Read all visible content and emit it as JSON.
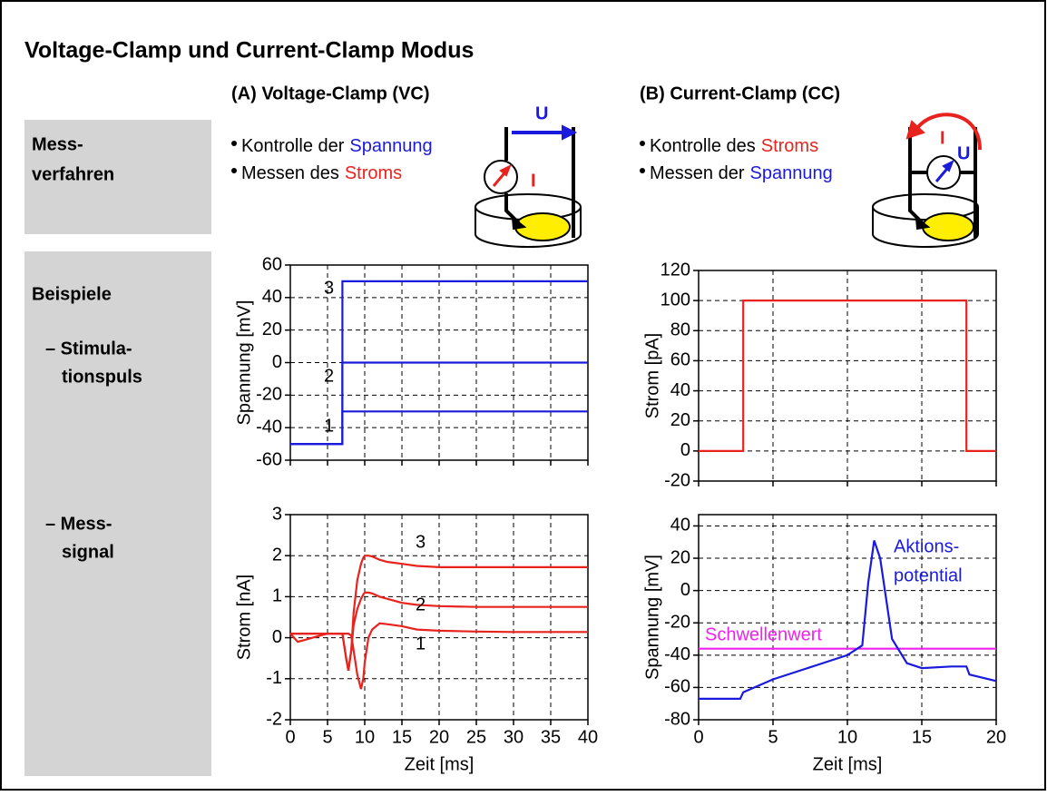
{
  "header": {
    "title": "Voltage-Clamp und Current-Clamp Modus"
  },
  "row_labels": {
    "method": [
      "Mess-",
      "verfahren"
    ],
    "examples": "Beispiele",
    "stimulus": [
      "– Stimula-",
      "tionspuls"
    ],
    "signal": [
      "– Mess-",
      "signal"
    ]
  },
  "panels": [
    {
      "heading": "(A) Voltage-Clamp (VC)",
      "bullets": [
        [
          "Kontrolle der",
          "Spannung"
        ],
        [
          "Messen des",
          "Stroms"
        ]
      ],
      "diagram": {
        "voltage": "U",
        "current": "I"
      }
    },
    {
      "heading": "(B) Current-Clamp (CC)",
      "bullets": [
        [
          "Kontrolle des",
          "Stroms"
        ],
        [
          "Messen der",
          "Spannung"
        ]
      ],
      "diagram": {
        "voltage": "U",
        "current": "I"
      }
    }
  ],
  "chart_data": [
    {
      "type": "line",
      "y_label": "Spannung [mV]",
      "xlim": [
        0,
        40
      ],
      "xticks": [
        0,
        5,
        10,
        15,
        20,
        25,
        30,
        35,
        40
      ],
      "show_xtick_labels": false,
      "ylim": [
        -60,
        60
      ],
      "yticks": [
        -60,
        -40,
        -20,
        0,
        20,
        40,
        60
      ],
      "grid": true,
      "series": [
        {
          "name": "1",
          "color": "#1a1adc",
          "x": [
            0,
            7,
            7,
            40
          ],
          "values": [
            -50,
            -50,
            -30,
            -30
          ]
        },
        {
          "name": "2",
          "color": "#1a1adc",
          "x": [
            0,
            7,
            7,
            40
          ],
          "values": [
            -50,
            -50,
            0,
            0
          ]
        },
        {
          "name": "3",
          "color": "#1a1adc",
          "x": [
            0,
            7,
            7,
            40
          ],
          "values": [
            -50,
            -50,
            50,
            50
          ]
        }
      ]
    },
    {
      "type": "line",
      "x_label": "Zeit [ms]",
      "y_label": "Strom [nA]",
      "xlim": [
        0,
        40
      ],
      "xticks": [
        0,
        5,
        10,
        15,
        20,
        25,
        30,
        35,
        40
      ],
      "show_xtick_labels": true,
      "ylim": [
        -2,
        3
      ],
      "yticks": [
        -2,
        -1,
        0,
        1,
        2,
        3
      ],
      "grid": true,
      "series": [
        {
          "name": "1",
          "color": "#e8231e",
          "x": [
            0,
            1,
            2,
            3,
            4,
            5,
            6,
            7,
            7.5,
            7.8,
            8.2,
            8.5,
            9,
            9.5,
            9.8,
            10,
            10.5,
            11,
            12,
            13,
            15,
            17,
            20,
            25,
            30,
            35,
            40
          ],
          "values": [
            0.1,
            -0.1,
            -0.05,
            0,
            0.05,
            0.1,
            0.1,
            0.1,
            0.1,
            0.1,
            0.05,
            -0.3,
            -0.9,
            -1.25,
            -1.0,
            -0.6,
            0,
            0.2,
            0.35,
            0.33,
            0.28,
            0.2,
            0.17,
            0.15,
            0.14,
            0.14,
            0.14
          ]
        },
        {
          "name": "2",
          "color": "#e8231e",
          "x": [
            0,
            1,
            2,
            3,
            4,
            5,
            6,
            7,
            7.5,
            7.8,
            8.2,
            8.5,
            9,
            9.5,
            9.8,
            10,
            10.5,
            11,
            12,
            13,
            15,
            17,
            20,
            25,
            30,
            35,
            40
          ],
          "values": [
            0.1,
            0.1,
            0.1,
            0.1,
            0.1,
            0.1,
            0.1,
            0.1,
            -0.5,
            -0.8,
            -0.3,
            0.3,
            0.7,
            0.95,
            1.05,
            1.1,
            1.1,
            1.08,
            1.0,
            0.95,
            0.85,
            0.8,
            0.77,
            0.75,
            0.75,
            0.75,
            0.75
          ]
        },
        {
          "name": "3",
          "color": "#e8231e",
          "x": [
            0,
            1,
            2,
            3,
            4,
            5,
            6,
            7,
            7.5,
            7.8,
            8.2,
            8.5,
            9,
            9.5,
            9.8,
            10,
            10.5,
            11,
            12,
            13,
            15,
            17,
            20,
            25,
            30,
            35,
            40
          ],
          "values": [
            0.1,
            0.1,
            0.1,
            0.1,
            0.1,
            0.1,
            0.1,
            0.1,
            -0.5,
            -0.8,
            -0.3,
            0.6,
            1.4,
            1.8,
            1.95,
            2.0,
            2.0,
            1.98,
            1.9,
            1.85,
            1.8,
            1.75,
            1.72,
            1.72,
            1.72,
            1.72,
            1.72
          ]
        }
      ]
    },
    {
      "type": "line",
      "y_label": "Strom [pA]",
      "xlim": [
        0,
        20
      ],
      "xticks": [
        0,
        5,
        10,
        15,
        20
      ],
      "show_xtick_labels": false,
      "ylim": [
        -20,
        120
      ],
      "yticks": [
        -20,
        0,
        20,
        40,
        60,
        80,
        100,
        120
      ],
      "grid": true,
      "series": [
        {
          "color": "#e8231e",
          "x": [
            0,
            3,
            3,
            18,
            18,
            20
          ],
          "values": [
            0,
            0,
            100,
            100,
            0,
            0
          ]
        }
      ]
    },
    {
      "type": "line",
      "x_label": "Zeit [ms]",
      "y_label": "Spannung [mV]",
      "xlim": [
        0,
        20
      ],
      "xticks": [
        0,
        5,
        10,
        15,
        20
      ],
      "show_xtick_labels": true,
      "ylim": [
        -80,
        47
      ],
      "yticks": [
        -80,
        -60,
        -40,
        -20,
        0,
        20,
        40
      ],
      "grid": true,
      "annotations": [
        "Aktions-",
        "potential"
      ],
      "series": [
        {
          "name": "Schwellenwert",
          "color": "#ee22ee",
          "x": [
            0,
            20
          ],
          "values": [
            -36,
            -36
          ]
        },
        {
          "color": "#1a1adc",
          "x": [
            0,
            2.8,
            3,
            5,
            8,
            10,
            11,
            11.4,
            11.8,
            12.2,
            13,
            14,
            15,
            17,
            18,
            18.2,
            20
          ],
          "values": [
            -67,
            -67,
            -63,
            -55,
            -46,
            -40,
            -34,
            5,
            31,
            20,
            -30,
            -45,
            -48,
            -47,
            -47,
            -52,
            -56
          ]
        }
      ]
    }
  ]
}
